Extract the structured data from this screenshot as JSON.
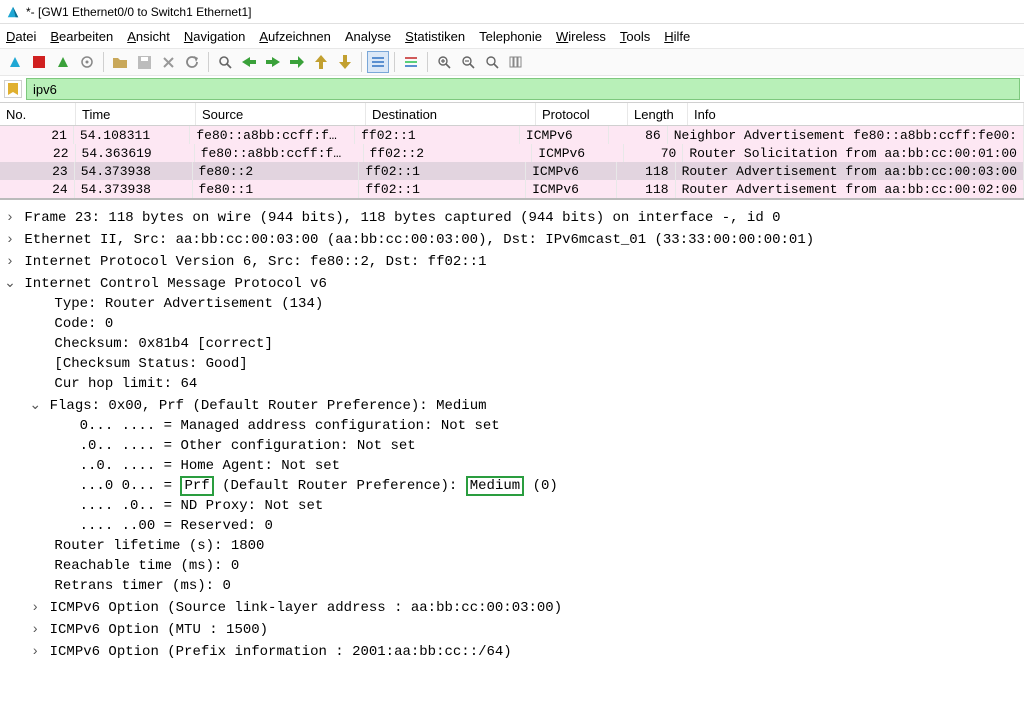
{
  "window": {
    "title": "*- [GW1 Ethernet0/0 to Switch1 Ethernet1]"
  },
  "menu": {
    "items": [
      {
        "label": "Datei",
        "ul": "D",
        "rest": "atei"
      },
      {
        "label": "Bearbeiten",
        "ul": "B",
        "rest": "earbeiten"
      },
      {
        "label": "Ansicht",
        "ul": "A",
        "rest": "nsicht"
      },
      {
        "label": "Navigation",
        "ul": "N",
        "rest": "avigation"
      },
      {
        "label": "Aufzeichnen",
        "ul": "A",
        "rest": "ufzeichnen"
      },
      {
        "label": "Analyse",
        "ul": "",
        "rest": "Analyse"
      },
      {
        "label": "Statistiken",
        "ul": "S",
        "rest": "tatistiken"
      },
      {
        "label": "Telephonie",
        "ul": "",
        "rest": "Telephonie"
      },
      {
        "label": "Wireless",
        "ul": "W",
        "rest": "ireless"
      },
      {
        "label": "Tools",
        "ul": "T",
        "rest": "ools"
      },
      {
        "label": "Hilfe",
        "ul": "H",
        "rest": "ilfe"
      }
    ]
  },
  "filter": {
    "value": "ipv6"
  },
  "columns": {
    "no": "No.",
    "time": "Time",
    "src": "Source",
    "dst": "Destination",
    "proto": "Protocol",
    "len": "Length",
    "info": "Info"
  },
  "rows": [
    {
      "no": "21",
      "time": "54.108311",
      "src": "fe80::a8bb:ccff:f…",
      "dst": "ff02::1",
      "proto": "ICMPv6",
      "len": "86",
      "info": "Neighbor Advertisement fe80::a8bb:ccff:fe00:",
      "bg": "#fde7f3"
    },
    {
      "no": "22",
      "time": "54.363619",
      "src": "fe80::a8bb:ccff:f…",
      "dst": "ff02::2",
      "proto": "ICMPv6",
      "len": "70",
      "info": "Router Solicitation from aa:bb:cc:00:01:00",
      "bg": "#fde7f3"
    },
    {
      "no": "23",
      "time": "54.373938",
      "src": "fe80::2",
      "dst": "ff02::1",
      "proto": "ICMPv6",
      "len": "118",
      "info": "Router Advertisement from aa:bb:cc:00:03:00",
      "bg": "#e2d4df"
    },
    {
      "no": "24",
      "time": "54.373938",
      "src": "fe80::1",
      "dst": "ff02::1",
      "proto": "ICMPv6",
      "len": "118",
      "info": "Router Advertisement from aa:bb:cc:00:02:00",
      "bg": "#fde7f3"
    }
  ],
  "details": {
    "frame": "Frame 23: 118 bytes on wire (944 bits), 118 bytes captured (944 bits) on interface -, id 0",
    "eth": "Ethernet II, Src: aa:bb:cc:00:03:00 (aa:bb:cc:00:03:00), Dst: IPv6mcast_01 (33:33:00:00:00:01)",
    "ipv6": "Internet Protocol Version 6, Src: fe80::2, Dst: ff02::1",
    "icmpv6": "Internet Control Message Protocol v6",
    "type": "Type: Router Advertisement (134)",
    "code": "Code: 0",
    "cksum": "Checksum: 0x81b4 [correct]",
    "ckstat": "[Checksum Status: Good]",
    "hop": "Cur hop limit: 64",
    "flags": "Flags: 0x00, Prf (Default Router Preference): Medium",
    "f_managed": "0... .... = Managed address configuration: Not set",
    "f_other": ".0.. .... = Other configuration: Not set",
    "f_home": "..0. .... = Home Agent: Not set",
    "f_prf_bits": "...0 0... = ",
    "f_prf_lbl": "Prf",
    "f_prf_mid": "(Default Router Preference):",
    "f_prf_val": "Medium",
    "f_prf_suffix": "(0)",
    "f_ndproxy": ".... .0.. = ND Proxy: Not set",
    "f_res": ".... ..00 = Reserved: 0",
    "rlife": "Router lifetime (s): 1800",
    "reach": "Reachable time (ms): 0",
    "retrans": "Retrans timer (ms): 0",
    "opt_ll": "ICMPv6 Option (Source link-layer address : aa:bb:cc:00:03:00)",
    "opt_mtu": "ICMPv6 Option (MTU : 1500)",
    "opt_pfx": "ICMPv6 Option (Prefix information : 2001:aa:bb:cc::/64)"
  },
  "colors": {
    "highlight_border": "#2a9d3f"
  }
}
